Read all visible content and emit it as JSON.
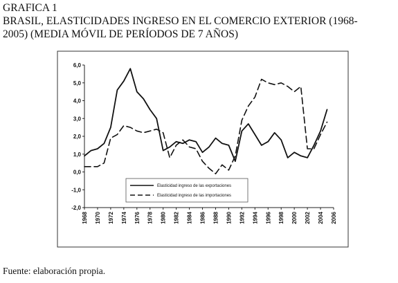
{
  "header": {
    "label": "GRAFICA 1",
    "title_line1": "BRASIL, ELASTICIDADES INGRESO EN EL COMERCIO EXTERIOR (1968-",
    "title_line2": "2005) (MEDIA MÓVIL DE PERÍODOS DE 7 AÑOS)"
  },
  "footer": {
    "source": "Fuente: elaboración propia."
  },
  "chart_data": {
    "type": "line",
    "title": "BRASIL, ELASTICIDADES INGRESO EN EL COMERCIO EXTERIOR (1968-2005) (MEDIA MÓVIL DE PERÍODOS DE 7 AÑOS)",
    "xlabel": "",
    "ylabel": "",
    "xlim": [
      1968,
      2006
    ],
    "ylim": [
      -2.0,
      6.0
    ],
    "x_ticks": [
      "1968",
      "1970",
      "1972",
      "1974",
      "1976",
      "1978",
      "1980",
      "1982",
      "1984",
      "1986",
      "1988",
      "1990",
      "1992",
      "1994",
      "1996",
      "1998",
      "2000",
      "2002",
      "2004",
      "2006"
    ],
    "y_ticks": [
      "6,0",
      "5,0",
      "4,0",
      "3,0",
      "2,0",
      "1,0",
      "0,0",
      "-1,0",
      "-2,0"
    ],
    "grid": false,
    "legend_position": "lower-center",
    "series": [
      {
        "name": "Elasticidad ingreso de las exportaciones",
        "style": "solid",
        "x": [
          1968,
          1969,
          1970,
          1971,
          1972,
          1973,
          1974,
          1975,
          1976,
          1977,
          1978,
          1979,
          1980,
          1981,
          1982,
          1983,
          1984,
          1985,
          1986,
          1987,
          1988,
          1989,
          1990,
          1991,
          1992,
          1993,
          1994,
          1995,
          1996,
          1997,
          1998,
          1999,
          2000,
          2001,
          2002,
          2003,
          2004,
          2005
        ],
        "values": [
          0.9,
          1.2,
          1.3,
          1.6,
          2.5,
          4.6,
          5.1,
          5.8,
          4.5,
          4.1,
          3.5,
          3.0,
          1.2,
          1.4,
          1.7,
          1.6,
          1.8,
          1.7,
          1.1,
          1.4,
          1.9,
          1.6,
          1.5,
          0.6,
          2.3,
          2.7,
          2.1,
          1.5,
          1.7,
          2.2,
          1.8,
          0.8,
          1.1,
          0.9,
          0.8,
          1.5,
          2.3,
          3.5
        ]
      },
      {
        "name": "Elasticidad ingreso de las importaciones",
        "style": "dashed",
        "x": [
          1968,
          1969,
          1970,
          1971,
          1972,
          1973,
          1974,
          1975,
          1976,
          1977,
          1978,
          1979,
          1980,
          1981,
          1982,
          1983,
          1984,
          1985,
          1986,
          1987,
          1988,
          1989,
          1990,
          1991,
          1992,
          1993,
          1994,
          1995,
          1996,
          1997,
          1998,
          1999,
          2000,
          2001,
          2002,
          2003,
          2004,
          2005
        ],
        "values": [
          0.3,
          0.3,
          0.3,
          0.5,
          1.9,
          2.1,
          2.6,
          2.5,
          2.3,
          2.2,
          2.3,
          2.4,
          2.2,
          0.8,
          1.5,
          1.8,
          1.4,
          1.3,
          0.6,
          0.2,
          -0.1,
          0.4,
          0.1,
          0.9,
          2.9,
          3.7,
          4.2,
          5.2,
          5.0,
          4.9,
          5.0,
          4.8,
          4.5,
          4.8,
          1.3,
          1.3,
          2.1,
          2.8
        ]
      }
    ]
  }
}
